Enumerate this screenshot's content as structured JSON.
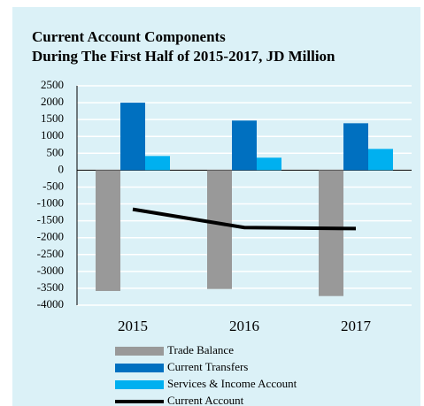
{
  "chart_data": {
    "type": "bar",
    "title": "Current Account Components",
    "subtitle": "During The First Half of 2015-2017, JD Million",
    "categories": [
      "2015",
      "2016",
      "2017"
    ],
    "series": [
      {
        "name": "Trade Balance",
        "color": "#999999",
        "values": [
          -3580,
          -3520,
          -3730
        ]
      },
      {
        "name": "Current Transfers",
        "color": "#0070c0",
        "values": [
          2000,
          1470,
          1390
        ]
      },
      {
        "name": "Services & Income Account",
        "color": "#00b0f0",
        "values": [
          420,
          370,
          630
        ]
      },
      {
        "name": "Current Account",
        "type": "line",
        "color": "#000000",
        "values": [
          -1160,
          -1700,
          -1730
        ]
      }
    ],
    "ylim": [
      -4000,
      2500
    ],
    "yticks": [
      -4000,
      -3500,
      -3000,
      -2500,
      -2000,
      -1500,
      -1000,
      -500,
      0,
      500,
      1000,
      1500,
      2000,
      2500
    ],
    "grid": true
  }
}
